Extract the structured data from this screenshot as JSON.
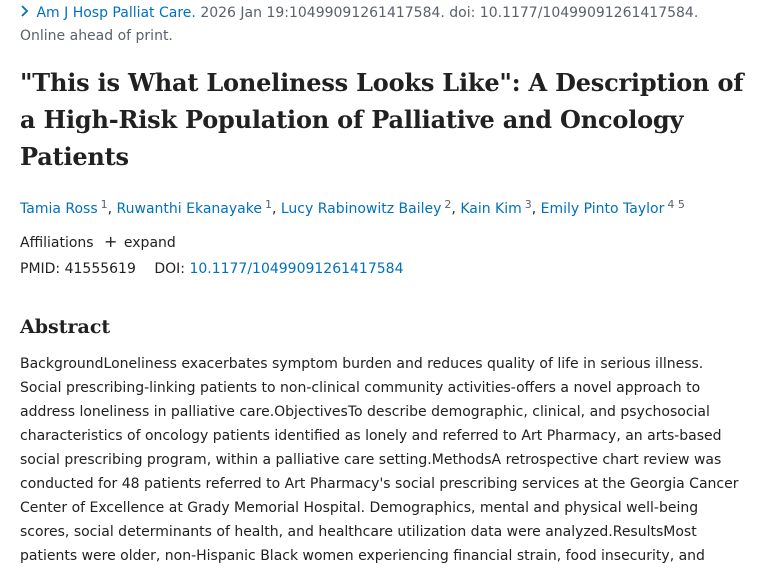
{
  "citation": {
    "journal": "Am J Hosp Palliat Care.",
    "details": "2026 Jan 19:10499091261417584. doi: 10.1177/10499091261417584.",
    "status": "Online ahead of print."
  },
  "title": "\"This is What Loneliness Looks Like\": A Description of a High-Risk Population of Palliative and Oncology Patients",
  "authors": [
    {
      "name": "Tamia Ross",
      "aff": "1"
    },
    {
      "name": "Ruwanthi Ekanayake",
      "aff": "1"
    },
    {
      "name": "Lucy Rabinowitz Bailey",
      "aff": "2"
    },
    {
      "name": "Kain Kim",
      "aff": "3"
    },
    {
      "name": "Emily Pinto Taylor",
      "aff": "4 5"
    }
  ],
  "affiliations": {
    "label": "Affiliations",
    "toggle": "expand"
  },
  "identifiers": {
    "pmid_label": "PMID:",
    "pmid": "41555619",
    "doi_label": "DOI:",
    "doi": "10.1177/10499091261417584"
  },
  "abstract": {
    "heading": "Abstract",
    "text": "BackgroundLoneliness exacerbates symptom burden and reduces quality of life in serious illness. Social prescribing-linking patients to non-clinical community activities-offers a novel approach to address loneliness in palliative care.ObjectivesTo describe demographic, clinical, and psychosocial characteristics of oncology patients identified as lonely and referred to Art Pharmacy, an arts-based social prescribing program, within a palliative care setting.MethodsA retrospective chart review was conducted for 48 patients referred to Art Pharmacy's social prescribing services at the Georgia Cancer Center of Excellence at Grady Memorial Hospital. Demographics, mental and physical well-being scores, social determinants of health, and healthcare utilization data were analyzed.ResultsMost patients were older, non-Hispanic Black women experiencing financial strain, food insecurity, and"
  }
}
